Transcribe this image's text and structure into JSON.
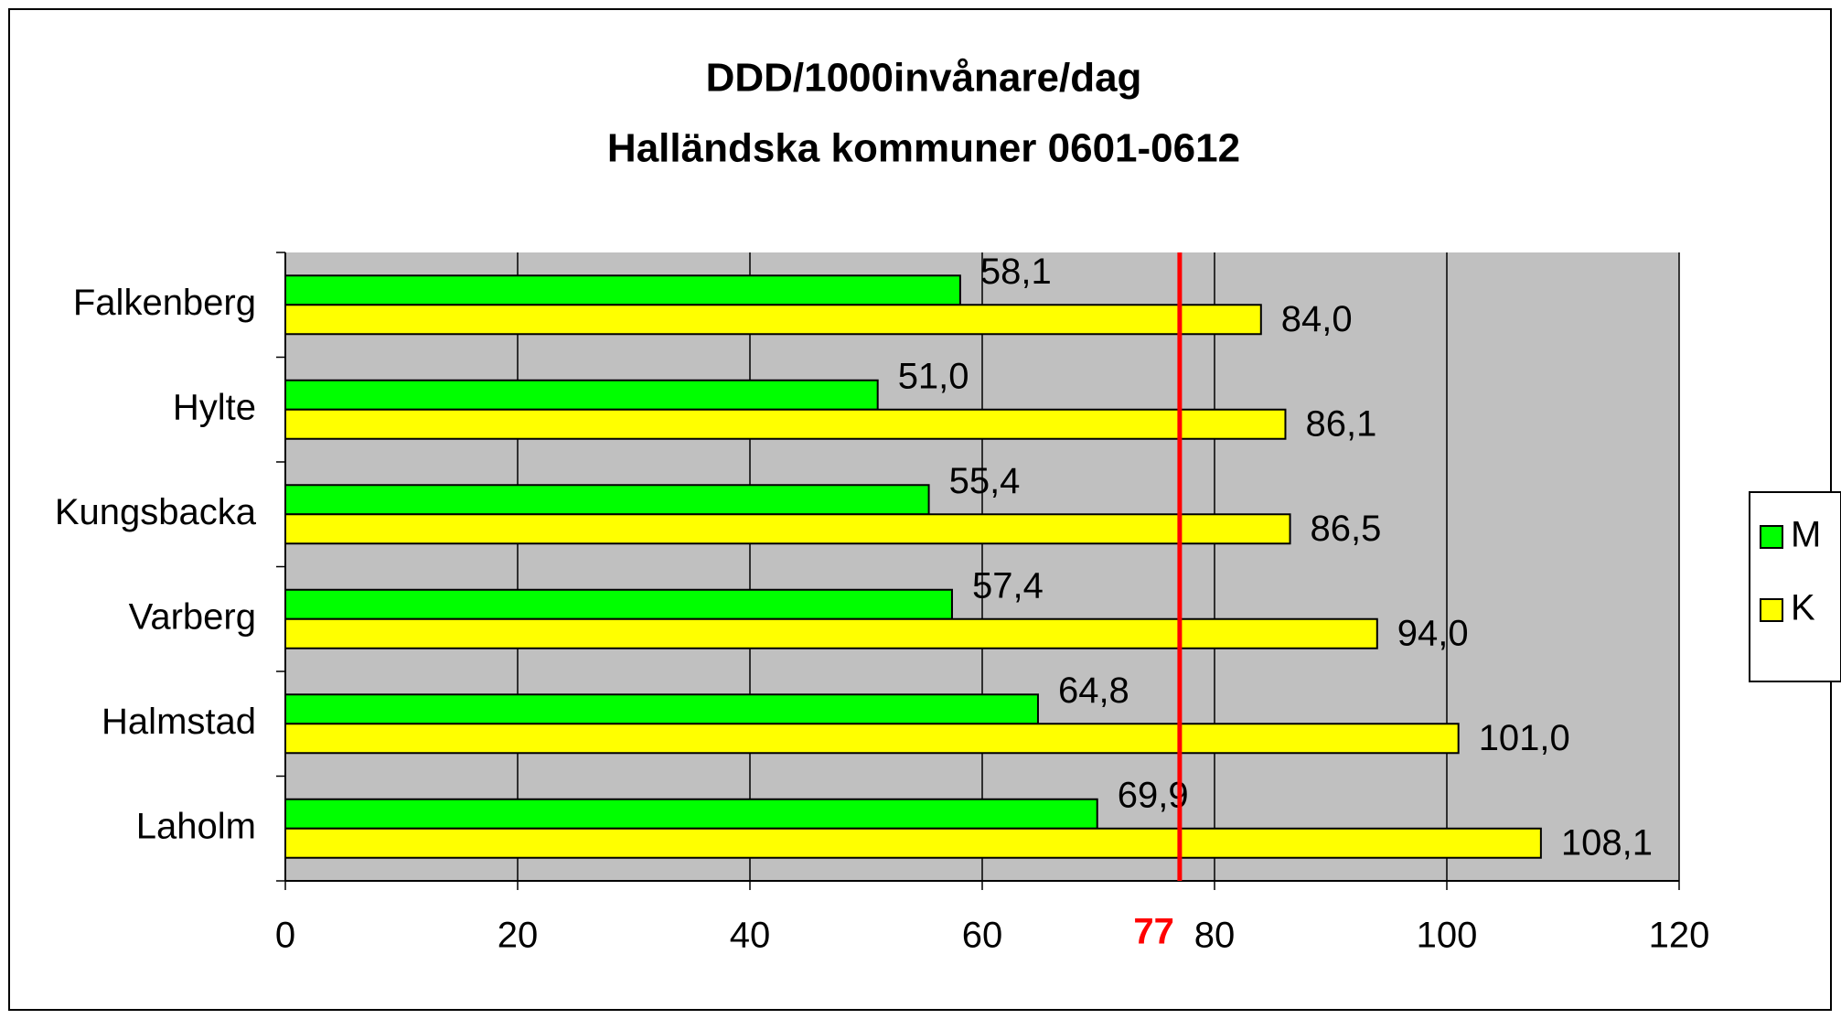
{
  "chart_data": {
    "type": "hbar",
    "title": [
      "DDD/1000invånare/dag",
      "Halländska kommuner 0601-0612"
    ],
    "categories": [
      "Falkenberg",
      "Hylte",
      "Kungsbacka",
      "Varberg",
      "Halmstad",
      "Laholm"
    ],
    "series": [
      {
        "name": "M",
        "color": "#00ff00",
        "values": [
          58.1,
          51.0,
          55.4,
          57.4,
          64.8,
          69.9
        ],
        "value_labels": [
          "58,1",
          "51,0",
          "55,4",
          "57,4",
          "64,8",
          "69,9"
        ]
      },
      {
        "name": "K",
        "color": "#ffff00",
        "values": [
          84.0,
          86.1,
          86.5,
          94.0,
          101.0,
          108.1
        ],
        "value_labels": [
          "84,0",
          "86,1",
          "86,5",
          "94,0",
          "101,0",
          "108,1"
        ]
      }
    ],
    "xlim": [
      0,
      120
    ],
    "xticks": [
      0,
      20,
      40,
      60,
      80,
      100,
      120
    ],
    "grid": true,
    "legend": "right",
    "reference_line": {
      "value": 77,
      "color": "#ff0000"
    }
  }
}
